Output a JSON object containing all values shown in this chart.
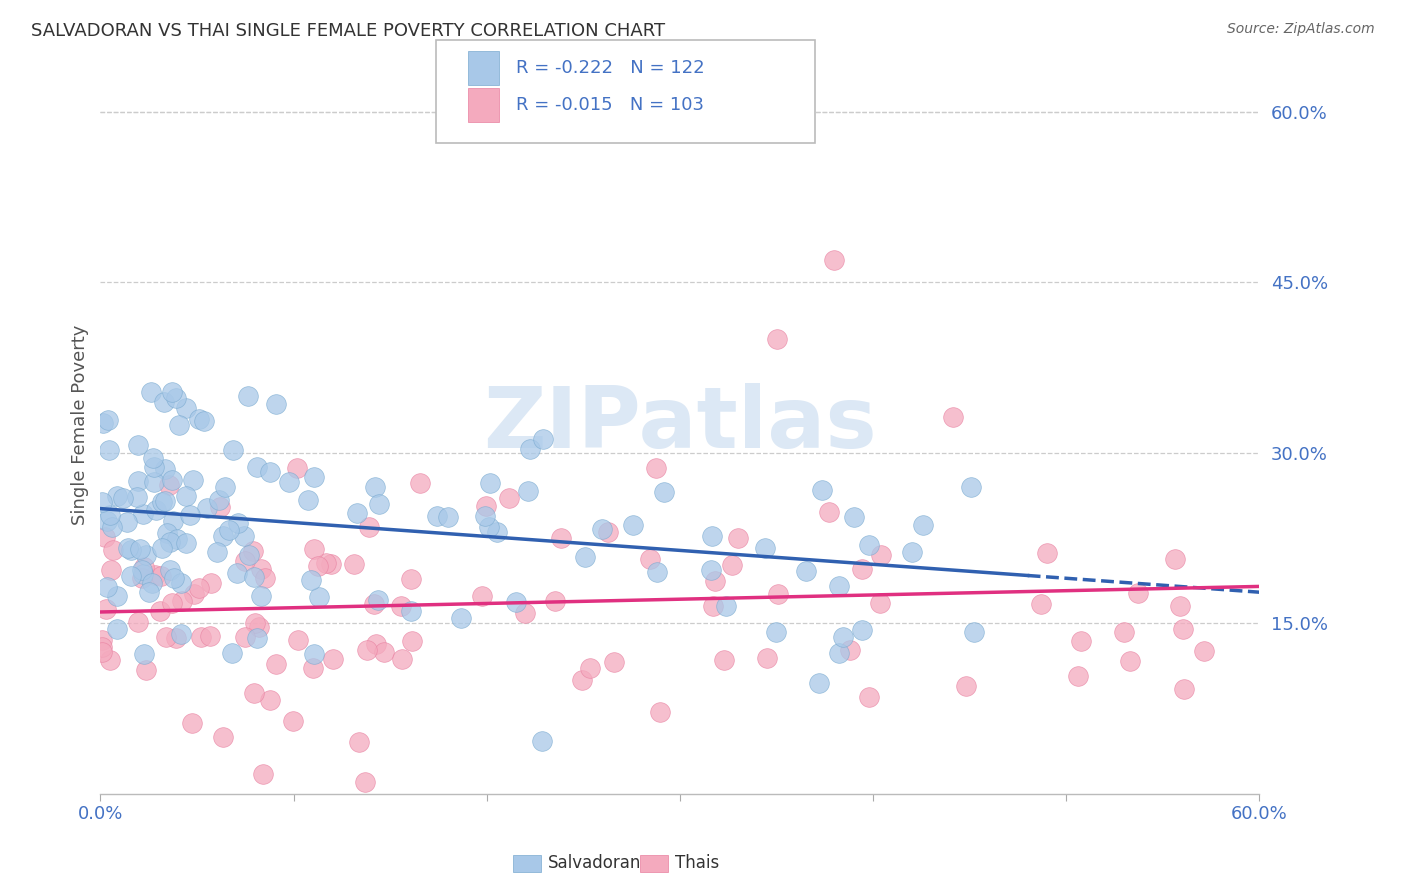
{
  "title": "SALVADORAN VS THAI SINGLE FEMALE POVERTY CORRELATION CHART",
  "source": "Source: ZipAtlas.com",
  "ylabel": "Single Female Poverty",
  "legend_blue_r": "R = -0.222",
  "legend_blue_n": "N = 122",
  "legend_pink_r": "R = -0.015",
  "legend_pink_n": "N = 103",
  "legend_label_blue": "Salvadorans",
  "legend_label_pink": "Thais",
  "right_yticks": [
    "60.0%",
    "45.0%",
    "30.0%",
    "15.0%"
  ],
  "right_ytick_vals": [
    0.6,
    0.45,
    0.3,
    0.15
  ],
  "xlim": [
    0.0,
    0.6
  ],
  "ylim": [
    0.0,
    0.65
  ],
  "blue_color": "#A8C8E8",
  "pink_color": "#F4AABE",
  "blue_edge_color": "#7AAAD0",
  "pink_edge_color": "#E880A0",
  "blue_line_color": "#3060B0",
  "pink_line_color": "#E03080",
  "watermark_color": "#DCE8F5",
  "grid_color": "#CCCCCC",
  "title_color": "#333333",
  "source_color": "#666666",
  "right_tick_color": "#4472C4",
  "xlabel_color": "#4472C4"
}
